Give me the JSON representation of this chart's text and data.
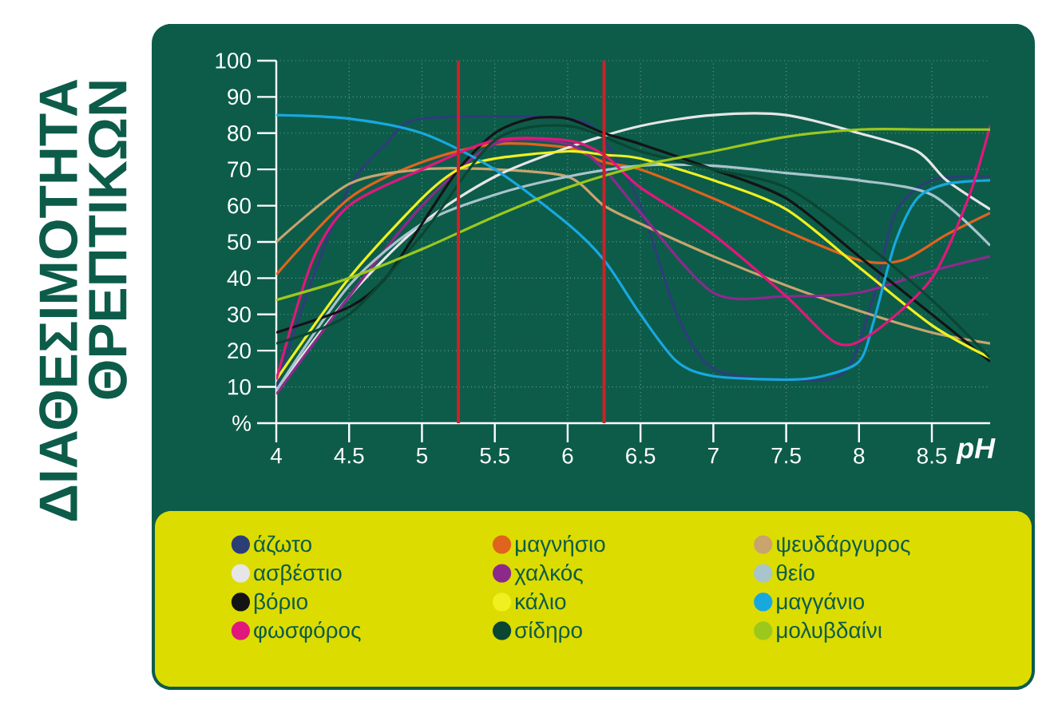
{
  "chart_data": {
    "type": "line",
    "title": "ΔΙΑΘΕΣΙΜΟΤΗΤΑ ΘΡΕΠΤΙΚΩΝ",
    "xlabel": "pH",
    "xlim": [
      4,
      8.9
    ],
    "ylim": [
      0,
      100
    ],
    "xticks": [
      4,
      4.5,
      5,
      5.5,
      6,
      6.5,
      7,
      7.5,
      8,
      8.5
    ],
    "yticks": [
      {
        "value": 0,
        "label": "%"
      },
      10,
      20,
      30,
      40,
      50,
      60,
      70,
      80,
      90,
      100
    ],
    "grid": true,
    "legend": "bottom",
    "marker": "none",
    "line_style": "solid",
    "ref_lines": [
      {
        "axis": "x",
        "value": 5.25,
        "color": "#d0202a"
      },
      {
        "axis": "x",
        "value": 6.25,
        "color": "#d0202a"
      }
    ],
    "series": [
      {
        "name": "άζωτο",
        "color": "#2c3e78",
        "x": [
          4,
          4.25,
          4.5,
          4.75,
          5,
          6,
          6.25,
          6.5,
          6.75,
          7,
          7.5,
          7.9,
          8.1,
          8.25,
          8.5,
          8.9
        ],
        "values": [
          10,
          40,
          65,
          77,
          84,
          84,
          78,
          60,
          30,
          15,
          12,
          14,
          35,
          58,
          67,
          68
        ]
      },
      {
        "name": "μαγνήσιο",
        "color": "#e0641e",
        "x": [
          4,
          4.5,
          5,
          5.5,
          6,
          6.25,
          6.5,
          7,
          7.5,
          8,
          8.3,
          8.6,
          8.9
        ],
        "values": [
          41,
          62,
          72,
          77,
          76,
          72,
          70,
          62,
          53,
          45,
          45,
          52,
          58
        ]
      },
      {
        "name": "ψευδάργυρος",
        "color": "#c8a46e",
        "x": [
          4,
          4.5,
          5,
          5.5,
          6,
          6.25,
          6.5,
          7,
          7.5,
          8,
          8.5,
          8.9
        ],
        "values": [
          50,
          66,
          70,
          70,
          68,
          60,
          55,
          46,
          38,
          31,
          25,
          22
        ]
      },
      {
        "name": "ασβέστιο",
        "color": "#e6e6e6",
        "x": [
          4,
          4.5,
          5,
          5.5,
          6,
          6.5,
          7,
          7.5,
          8,
          8.4,
          8.6,
          8.9
        ],
        "values": [
          9,
          35,
          55,
          68,
          76,
          82,
          85,
          85,
          80,
          75,
          67,
          59
        ]
      },
      {
        "name": "χαλκός",
        "color": "#8c2a8c",
        "x": [
          4,
          4.5,
          5,
          5.5,
          6,
          6.25,
          6.5,
          7,
          7.5,
          8,
          8.5,
          8.9
        ],
        "values": [
          8,
          35,
          60,
          77,
          77,
          70,
          58,
          36,
          35,
          36,
          42,
          46
        ]
      },
      {
        "name": "θείο",
        "color": "#a8c4cc",
        "x": [
          4,
          4.5,
          5,
          5.5,
          6,
          6.5,
          7,
          7.5,
          8,
          8.5,
          8.9
        ],
        "values": [
          9,
          38,
          55,
          63,
          68,
          71,
          71,
          69,
          67,
          63,
          49
        ]
      },
      {
        "name": "βόριο",
        "color": "#141414",
        "x": [
          4,
          4.5,
          4.75,
          5,
          5.25,
          5.5,
          5.75,
          6,
          6.25,
          6.5,
          7,
          7.5,
          8,
          8.5,
          8.9
        ],
        "values": [
          25,
          32,
          40,
          55,
          70,
          80,
          84,
          84,
          80,
          77,
          70,
          62,
          46,
          30,
          17
        ]
      },
      {
        "name": "κάλιο",
        "color": "#f0f020",
        "x": [
          4,
          4.5,
          5,
          5.25,
          5.5,
          6,
          6.25,
          6.5,
          7,
          7.5,
          8,
          8.5,
          8.9
        ],
        "values": [
          12,
          40,
          62,
          70,
          73,
          75,
          74,
          73,
          67,
          59,
          43,
          27,
          18
        ]
      },
      {
        "name": "μαγγάνιο",
        "color": "#18a8e0",
        "x": [
          4,
          4.5,
          5,
          5.5,
          6,
          6.25,
          6.5,
          6.75,
          7,
          7.5,
          7.75,
          8,
          8.1,
          8.25,
          8.4,
          8.6,
          8.9
        ],
        "values": [
          85,
          84,
          80,
          70,
          55,
          45,
          30,
          17,
          13,
          12,
          13,
          17,
          28,
          50,
          62,
          66,
          67
        ]
      },
      {
        "name": "φωσφόρος",
        "color": "#e0187c",
        "x": [
          4,
          4.25,
          4.5,
          5,
          5.5,
          6,
          6.25,
          6.5,
          7,
          7.5,
          7.85,
          8.1,
          8.5,
          8.75,
          8.9
        ],
        "values": [
          12,
          45,
          60,
          70,
          78,
          78,
          74,
          65,
          52,
          35,
          22,
          25,
          40,
          62,
          82
        ]
      },
      {
        "name": "σίδηρο",
        "color": "#0b4632",
        "x": [
          4,
          4.5,
          5,
          5.5,
          6,
          6.5,
          7,
          7.5,
          8,
          8.5,
          8.9
        ],
        "values": [
          22,
          30,
          52,
          78,
          82,
          75,
          70,
          65,
          51,
          34,
          18
        ]
      },
      {
        "name": "μολυβδαίνι",
        "color": "#9cc81e",
        "x": [
          4,
          4.5,
          5,
          5.5,
          6,
          6.5,
          7,
          7.5,
          8,
          8.5,
          8.9
        ],
        "values": [
          34,
          40,
          48,
          57,
          65,
          71,
          75,
          79,
          81,
          81,
          81
        ]
      }
    ]
  }
}
